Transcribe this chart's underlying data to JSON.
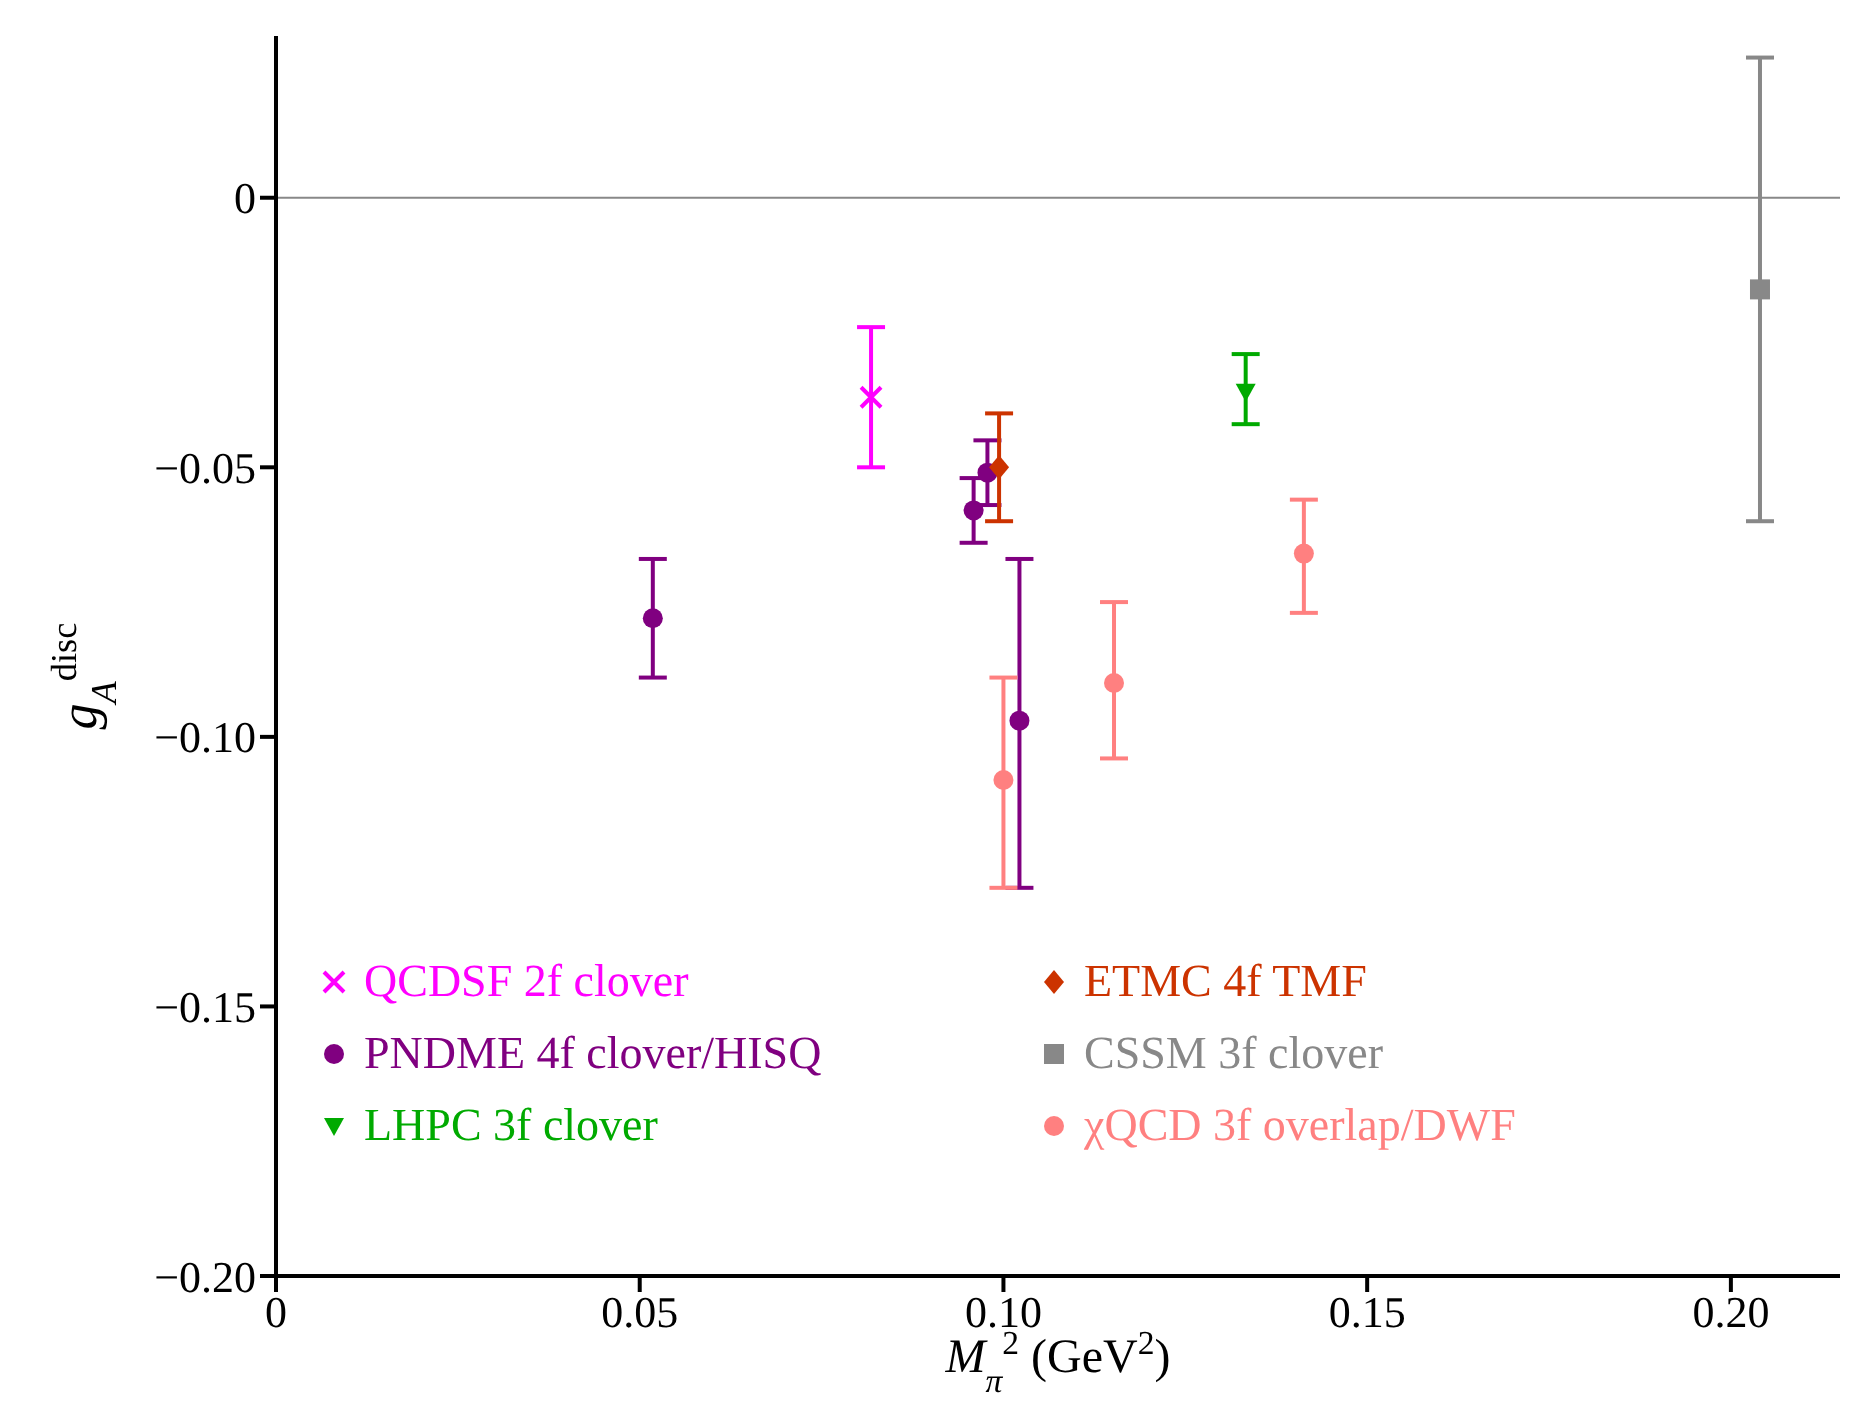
{
  "chart_data": {
    "type": "scatter",
    "xlabel": "M$_{π}$$^{2}$ (GeV$^{2}$)",
    "ylabel": "g$_{A}$$^{disc}$",
    "xlim": [
      0,
      0.215
    ],
    "xticks": [
      0,
      0.05,
      {
        "value": 0.1,
        "label": "0.10"
      },
      0.15,
      {
        "value": 0.2,
        "label": "0.20"
      }
    ],
    "ylim": [
      -0.2,
      0.03
    ],
    "yticks": [
      {
        "value": -0.2,
        "label": "−0.20"
      },
      {
        "value": -0.15,
        "label": "−0.15"
      },
      {
        "value": -0.1,
        "label": "−0.10"
      },
      {
        "value": -0.05,
        "label": "−0.05"
      },
      0
    ],
    "grid": false,
    "legend": "bottom",
    "ref_lines": [
      {
        "axis": "y",
        "value": 0,
        "color": "#888888"
      }
    ],
    "series": [
      {
        "name": "QCDSF 2f clover",
        "color": "#ff00ff",
        "marker": "cross",
        "x": [
          0.0818
        ],
        "values": [
          -0.037
        ],
        "errors": [
          [
            -0.05,
            -0.024
          ]
        ]
      },
      {
        "name": "PNDME 4f clover/HISQ",
        "color": "#800080",
        "marker": "circle",
        "x": [
          0.0518,
          0.0959,
          0.0978,
          0.1022
        ],
        "values": [
          -0.078,
          -0.058,
          -0.051,
          -0.097
        ],
        "errors": [
          [
            -0.089,
            -0.067
          ],
          [
            -0.064,
            -0.052
          ],
          [
            -0.057,
            -0.045
          ],
          [
            -0.128,
            -0.067
          ]
        ]
      },
      {
        "name": "LHPC 3f clover",
        "color": "#00aa00",
        "marker": "triangle",
        "x": [
          0.1333
        ],
        "values": [
          -0.036
        ],
        "errors": [
          [
            -0.042,
            -0.029
          ]
        ]
      },
      {
        "name": "ETMC 4f TMF",
        "color": "#cc3300",
        "marker": "diamond",
        "x": [
          0.0994
        ],
        "values": [
          -0.05
        ],
        "errors": [
          [
            -0.06,
            -0.04
          ]
        ]
      },
      {
        "name": "CSSM 3f clover",
        "color": "#888888",
        "marker": "square",
        "x": [
          0.204
        ],
        "values": [
          -0.017
        ],
        "errors": [
          [
            -0.06,
            0.026
          ]
        ]
      },
      {
        "name": "χQCD 3f overlap/DWF",
        "color": "#ff8080",
        "marker": "circle",
        "x": [
          0.1,
          0.1152,
          0.1413
        ],
        "values": [
          -0.108,
          -0.09,
          -0.066
        ],
        "errors": [
          [
            -0.128,
            -0.089
          ],
          [
            -0.104,
            -0.075
          ],
          [
            -0.077,
            -0.056
          ]
        ]
      }
    ]
  }
}
